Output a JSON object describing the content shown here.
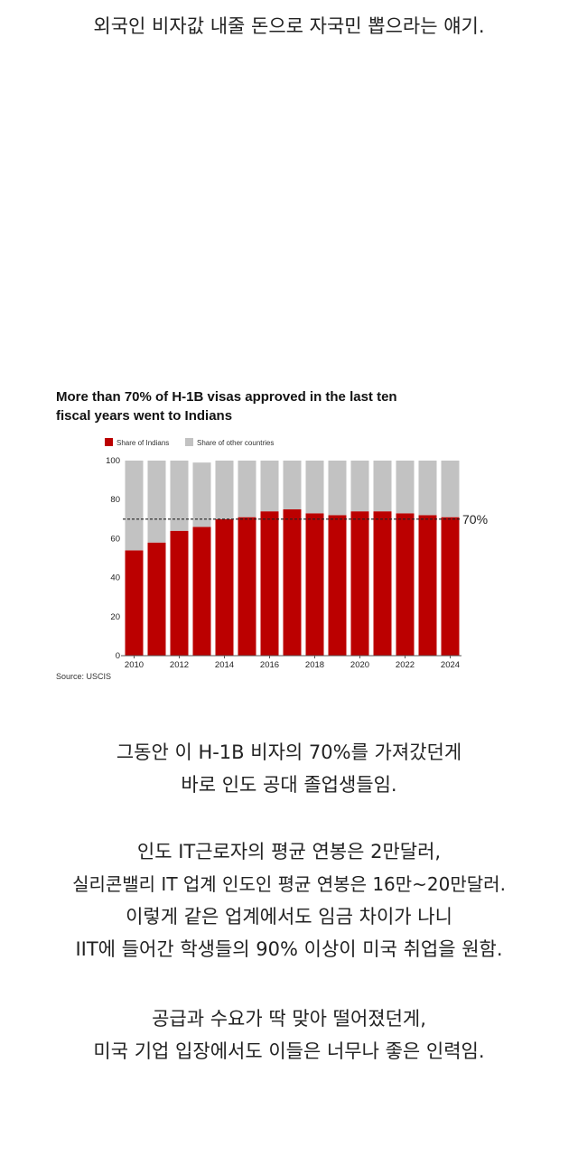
{
  "intro": {
    "lines": [
      "외국인 비자값 내줄 돈으로 자국민 뽑으라는 얘기."
    ]
  },
  "paragraph1": {
    "lines": [
      "그동안 이 H-1B 비자의 70%를 가져갔던게",
      "바로 인도 공대 졸업생들임."
    ]
  },
  "paragraph2": {
    "lines": [
      "인도 IT근로자의 평균 연봉은 2만달러,",
      "실리콘밸리 IT 업계 인도인 평균 연봉은 16만~20만달러.",
      "이렇게 같은 업계에서도 임금 차이가 나니",
      "IIT에 들어간 학생들의 90% 이상이 미국 취업을 원함."
    ]
  },
  "paragraph3": {
    "lines": [
      "공급과 수요가 딱 맞아 떨어졌던게,",
      "미국 기업 입장에서도 이들은 너무나 좋은 인력임."
    ]
  },
  "chart_data": {
    "type": "bar",
    "title_lines": [
      "More than 70% of H-1B visas approved in the last ten",
      "fiscal years went to Indians"
    ],
    "x": [
      2010,
      2011,
      2012,
      2013,
      2014,
      2015,
      2016,
      2017,
      2018,
      2019,
      2020,
      2021,
      2022,
      2023,
      2024
    ],
    "x_tick_labels": [
      "2010",
      "2012",
      "2014",
      "2016",
      "2018",
      "2020",
      "2022",
      "2024"
    ],
    "x_tick_values": [
      2010,
      2012,
      2014,
      2016,
      2018,
      2020,
      2022,
      2024
    ],
    "series": [
      {
        "name": "Share of Indians",
        "color": "#bb0000",
        "values": [
          54,
          58,
          64,
          66,
          70,
          71,
          74,
          75,
          73,
          72,
          74,
          74,
          73,
          72,
          71
        ]
      },
      {
        "name": "Share of other countries",
        "color": "#c2c2c2",
        "values": [
          46,
          42,
          36,
          33,
          30,
          29,
          26,
          25,
          27,
          28,
          26,
          26,
          27,
          28,
          29
        ]
      }
    ],
    "stacked": true,
    "ylim": [
      0,
      100
    ],
    "y_ticks": [
      0,
      20,
      40,
      60,
      80,
      100
    ],
    "reference_line": {
      "value": 70,
      "label": "70%",
      "style": "dashed"
    },
    "legend_position": "top-left",
    "grid": false,
    "source": "Source: USCIS"
  }
}
